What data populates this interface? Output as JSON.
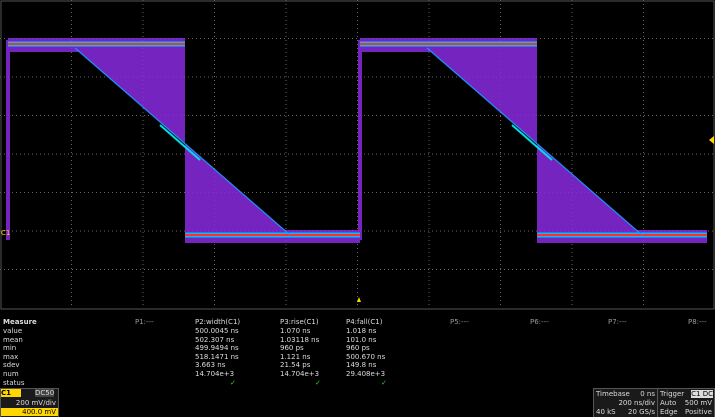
{
  "trace_label": "C1",
  "measure": {
    "title": "Measure",
    "row_labels": [
      "value",
      "mean",
      "min",
      "max",
      "sdev",
      "num",
      "status"
    ],
    "columns": [
      {
        "header": "P1:---",
        "values": []
      },
      {
        "header": "P2:width(C1)",
        "values": [
          "500.0045 ns",
          "502.307 ns",
          "499.9494 ns",
          "518.1471 ns",
          "3.663 ns",
          "14.704e+3",
          "✓"
        ]
      },
      {
        "header": "P3:rise(C1)",
        "values": [
          "1.070 ns",
          "1.03118 ns",
          "960 ps",
          "1.121 ns",
          "21.54 ps",
          "14.704e+3",
          "✓"
        ]
      },
      {
        "header": "P4:fall(C1)",
        "values": [
          "1.018 ns",
          "101.0 ns",
          "960 ps",
          "500.670 ns",
          "149.8 ns",
          "29.408e+3",
          "✓"
        ]
      },
      {
        "header": "P5:---",
        "values": []
      },
      {
        "header": "P6:---",
        "values": []
      },
      {
        "header": "P7:---",
        "values": []
      },
      {
        "header": "P8:---",
        "values": []
      }
    ]
  },
  "channel": {
    "label": "C1",
    "coupling": "DC50",
    "scale": "200 mV/div",
    "offset": "400.0 mV"
  },
  "timebase": {
    "title": "Timebase",
    "delay": "0 ns",
    "scale": "200 ns/div",
    "samples": "40 kS",
    "rate": "20 GS/s"
  },
  "trigger": {
    "title": "Trigger",
    "source": "C1 DC",
    "mode": "Auto",
    "level": "500 mV",
    "type": "Edge",
    "slope": "Positive"
  }
}
